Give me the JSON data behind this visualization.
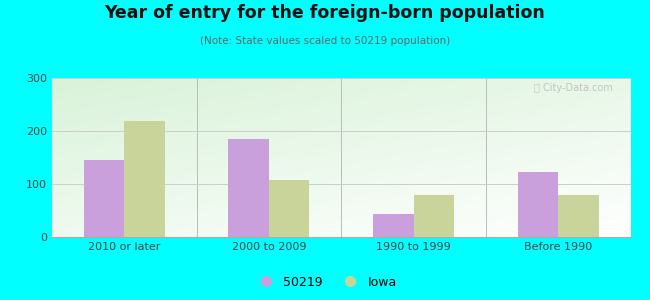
{
  "title": "Year of entry for the foreign-born population",
  "subtitle": "(Note: State values scaled to 50219 population)",
  "categories": [
    "2010 or later",
    "2000 to 2009",
    "1990 to 1999",
    "Before 1990"
  ],
  "values_50219": [
    145,
    185,
    43,
    123
  ],
  "values_iowa": [
    218,
    108,
    80,
    80
  ],
  "color_50219": "#c9a0dc",
  "color_iowa": "#c8d49a",
  "ylim": [
    0,
    300
  ],
  "yticks": [
    0,
    100,
    200,
    300
  ],
  "background_color": "#00ffff",
  "legend_labels": [
    "50219",
    "Iowa"
  ],
  "bar_width": 0.28
}
